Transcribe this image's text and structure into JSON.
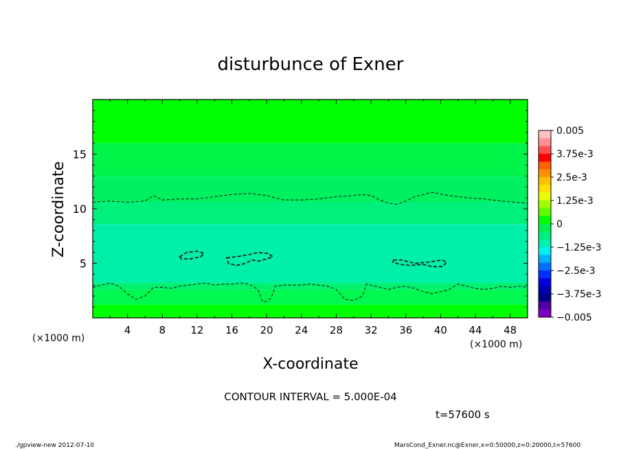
{
  "chart_data": {
    "type": "heatmap",
    "title": "disturbunce of Exner",
    "xlabel": "X-coordinate",
    "ylabel": "Z-coordinate",
    "x_unit": "(×1000 m)",
    "y_unit": "(×1000 m)",
    "xlim": [
      0,
      50
    ],
    "ylim": [
      0,
      20
    ],
    "x_ticks": [
      "4",
      "8",
      "12",
      "16",
      "20",
      "24",
      "28",
      "32",
      "36",
      "40",
      "44",
      "48"
    ],
    "y_ticks": [
      "5",
      "10",
      "15"
    ],
    "colorbar": {
      "labels": [
        "0.005",
        "3.75e-3",
        "2.5e-3",
        "1.25e-3",
        "0",
        "−1.25e-3",
        "−2.5e-3",
        "−3.75e-3",
        "−0.005"
      ],
      "colors": [
        "#ffc0c0",
        "#ff9090",
        "#ff5050",
        "#ff0000",
        "#ff6000",
        "#ff9000",
        "#ffc000",
        "#ffe000",
        "#e8ff00",
        "#a0ff00",
        "#60ff00",
        "#00ff00",
        "#00f04c",
        "#00f080",
        "#00f0b0",
        "#00f0f0",
        "#00b0ff",
        "#0070ff",
        "#0030ff",
        "#0000e0",
        "#0000b0",
        "#000088",
        "#5000a0",
        "#8000c0"
      ]
    },
    "fill_bands": [
      {
        "z_range": [
          16,
          20
        ],
        "color": "#00ff00"
      },
      {
        "z_range": [
          13,
          16
        ],
        "color": "#00f54a"
      },
      {
        "z_range": [
          10.6,
          13
        ],
        "color": "#00f060"
      },
      {
        "z_range": [
          8.6,
          10.6
        ],
        "color": "#00f07c"
      },
      {
        "z_range": [
          3.2,
          8.6
        ],
        "color": "#00f0a8"
      },
      {
        "z_range": [
          2.6,
          3.2
        ],
        "color": "#00f070"
      },
      {
        "z_range": [
          1.2,
          2.6
        ],
        "color": "#00f850"
      },
      {
        "z_range": [
          0,
          1.2
        ],
        "color": "#00ff00"
      }
    ],
    "contours": [
      {
        "name": "upper",
        "points": [
          [
            0,
            10.6
          ],
          [
            2,
            10.7
          ],
          [
            4,
            10.6
          ],
          [
            6,
            10.7
          ],
          [
            7,
            11.2
          ],
          [
            8,
            10.8
          ],
          [
            10,
            10.9
          ],
          [
            12,
            10.9
          ],
          [
            14,
            11.1
          ],
          [
            16,
            11.3
          ],
          [
            18,
            11.4
          ],
          [
            20,
            11.2
          ],
          [
            22,
            10.8
          ],
          [
            24,
            10.8
          ],
          [
            26,
            10.9
          ],
          [
            28,
            11.1
          ],
          [
            30,
            11.2
          ],
          [
            31,
            11.3
          ],
          [
            32,
            11.2
          ],
          [
            33,
            10.8
          ],
          [
            34,
            10.5
          ],
          [
            35,
            10.4
          ],
          [
            36,
            10.7
          ],
          [
            37,
            11.1
          ],
          [
            39,
            11.5
          ],
          [
            41,
            11.2
          ],
          [
            43,
            11.0
          ],
          [
            45,
            10.9
          ],
          [
            47,
            10.7
          ],
          [
            50,
            10.5
          ]
        ]
      },
      {
        "name": "lower",
        "points": [
          [
            0,
            2.8
          ],
          [
            1,
            3.0
          ],
          [
            2,
            3.2
          ],
          [
            3,
            2.9
          ],
          [
            4,
            2.2
          ],
          [
            5,
            1.7
          ],
          [
            6,
            2.0
          ],
          [
            7,
            2.8
          ],
          [
            8,
            2.8
          ],
          [
            9,
            2.7
          ],
          [
            10,
            2.9
          ],
          [
            11,
            3.0
          ],
          [
            12,
            3.1
          ],
          [
            13,
            3.2
          ],
          [
            14,
            3.0
          ],
          [
            15,
            3.1
          ],
          [
            16,
            3.1
          ],
          [
            17,
            3.2
          ],
          [
            18,
            3.1
          ],
          [
            19,
            2.6
          ],
          [
            19.5,
            1.5
          ],
          [
            20,
            1.5
          ],
          [
            20.5,
            1.8
          ],
          [
            21,
            2.9
          ],
          [
            22,
            3.0
          ],
          [
            24,
            3.0
          ],
          [
            25,
            3.1
          ],
          [
            26,
            3.0
          ],
          [
            27,
            2.9
          ],
          [
            28,
            2.6
          ],
          [
            29,
            1.7
          ],
          [
            30,
            1.6
          ],
          [
            31,
            2.0
          ],
          [
            31.5,
            3.1
          ],
          [
            32,
            3.0
          ],
          [
            33,
            2.8
          ],
          [
            34,
            2.6
          ],
          [
            35,
            2.8
          ],
          [
            36,
            2.9
          ],
          [
            37,
            2.7
          ],
          [
            38,
            2.4
          ],
          [
            39,
            2.2
          ],
          [
            40,
            2.4
          ],
          [
            41,
            2.6
          ],
          [
            42,
            3.1
          ],
          [
            43,
            2.9
          ],
          [
            44,
            2.7
          ],
          [
            45,
            2.6
          ],
          [
            46,
            2.7
          ],
          [
            47,
            2.9
          ],
          [
            48,
            2.8
          ],
          [
            49,
            2.9
          ],
          [
            50,
            2.8
          ]
        ]
      },
      {
        "name": "cell-1",
        "closed": true,
        "points": [
          [
            10,
            5.6
          ],
          [
            10.8,
            6.0
          ],
          [
            12,
            6.1
          ],
          [
            12.8,
            5.9
          ],
          [
            12.4,
            5.6
          ],
          [
            11.2,
            5.4
          ],
          [
            10.2,
            5.4
          ]
        ]
      },
      {
        "name": "cell-2",
        "closed": true,
        "points": [
          [
            15.4,
            5.5
          ],
          [
            16.5,
            5.6
          ],
          [
            18,
            5.8
          ],
          [
            19,
            6.0
          ],
          [
            20.2,
            5.9
          ],
          [
            20.7,
            5.6
          ],
          [
            20,
            5.4
          ],
          [
            19.1,
            5.2
          ],
          [
            18.3,
            5.3
          ],
          [
            17.6,
            5.0
          ],
          [
            16.5,
            4.8
          ],
          [
            15.6,
            5.0
          ]
        ]
      },
      {
        "name": "cell-3",
        "closed": true,
        "points": [
          [
            34.6,
            5.3
          ],
          [
            35.5,
            5.3
          ],
          [
            37,
            5.0
          ],
          [
            38.5,
            5.1
          ],
          [
            40.2,
            5.3
          ],
          [
            40.7,
            5.1
          ],
          [
            40.2,
            4.7
          ],
          [
            39,
            4.7
          ],
          [
            38,
            4.9
          ],
          [
            36.5,
            4.8
          ],
          [
            35.3,
            4.9
          ],
          [
            34.5,
            5.1
          ]
        ]
      }
    ]
  },
  "annotations": {
    "contour_interval": "CONTOUR INTERVAL = 5.000E-04",
    "time": "t=57600 s",
    "footer_left": "./gpview-new  2012-07-10",
    "footer_right": "MarsCond_Exner.nc@Exner,x=0:50000,z=0:20000,t=57600"
  }
}
